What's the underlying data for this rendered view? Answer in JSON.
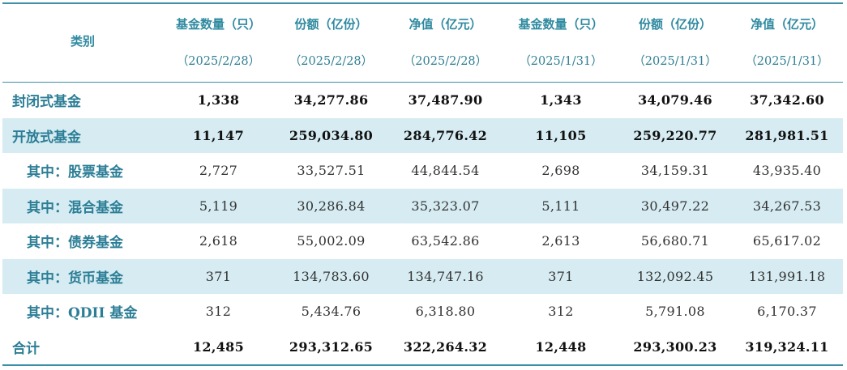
{
  "table": {
    "category_header": "类别",
    "columns": [
      {
        "title": "基金数量（只）",
        "date": "（2025/2/28）"
      },
      {
        "title": "份额（亿份）",
        "date": "（2025/2/28）"
      },
      {
        "title": "净值（亿元）",
        "date": "（2025/2/28）"
      },
      {
        "title": "基金数量（只）",
        "date": "（2025/1/31）"
      },
      {
        "title": "份额（亿份）",
        "date": "（2025/1/31）"
      },
      {
        "title": "净值（亿元）",
        "date": "（2025/1/31）"
      }
    ],
    "rows": [
      {
        "label": "封闭式基金",
        "values": [
          "1,338",
          "34,277.86",
          "37,487.90",
          "1,343",
          "34,079.46",
          "37,342.60"
        ]
      },
      {
        "label": "开放式基金",
        "values": [
          "11,147",
          "259,034.80",
          "284,776.42",
          "11,105",
          "259,220.77",
          "281,981.51"
        ]
      },
      {
        "label": "其中：股票基金",
        "values": [
          "2,727",
          "33,527.51",
          "44,844.54",
          "2,698",
          "34,159.31",
          "43,935.40"
        ]
      },
      {
        "label": "其中：混合基金",
        "values": [
          "5,119",
          "30,286.84",
          "35,323.07",
          "5,111",
          "30,497.22",
          "34,267.53"
        ]
      },
      {
        "label": "其中：债券基金",
        "values": [
          "2,618",
          "55,002.09",
          "63,542.86",
          "2,613",
          "56,680.71",
          "65,617.02"
        ]
      },
      {
        "label": "其中：货币基金",
        "values": [
          "371",
          "134,783.60",
          "134,747.16",
          "371",
          "132,092.45",
          "131,991.18"
        ]
      },
      {
        "label": "其中：QDII 基金",
        "values": [
          "312",
          "5,434.76",
          "6,318.80",
          "312",
          "5,791.08",
          "6,170.37"
        ]
      },
      {
        "label": "合计",
        "values": [
          "12,485",
          "293,312.65",
          "322,264.32",
          "12,448",
          "293,300.23",
          "319,324.11"
        ]
      }
    ]
  }
}
